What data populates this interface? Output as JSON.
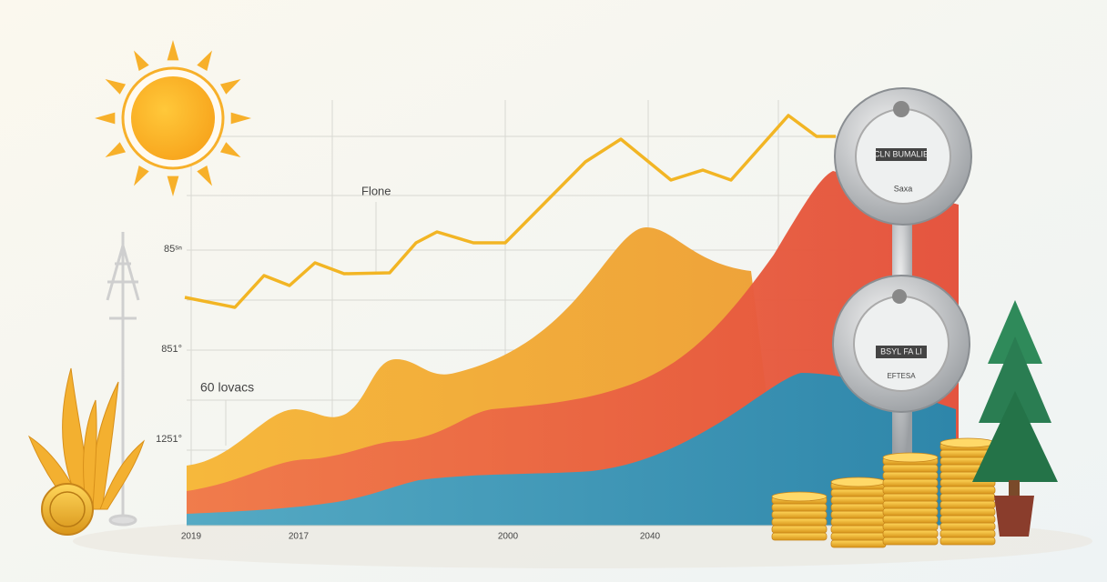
{
  "axis_labels": {
    "x": [
      "2019",
      "2017",
      "2000",
      "2040"
    ],
    "y": [
      "85ˢⁿ",
      "851°",
      "1251°"
    ]
  },
  "annotations": [
    "Flone",
    "60 lovacs"
  ],
  "meters": [
    {
      "display": "CLN BUMALIE",
      "caption": "Saxa"
    },
    {
      "display": "BSYL FA LI",
      "caption": "EFTESA"
    }
  ]
}
